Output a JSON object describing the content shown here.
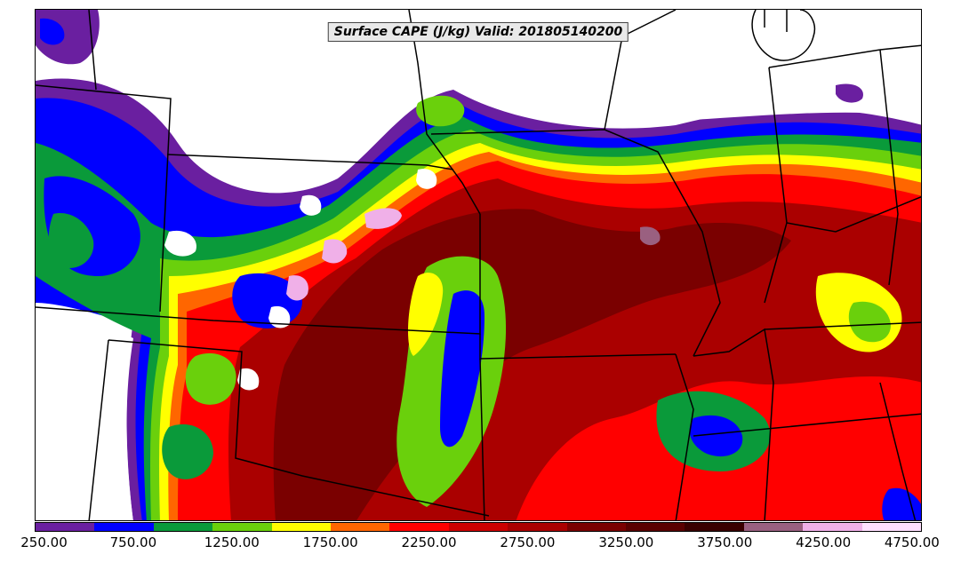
{
  "title": "Surface CAPE (J/kg) Valid: 201805140200",
  "colorbar": {
    "colors": [
      "#6a1fa0",
      "#0000ff",
      "#0a9a3a",
      "#6ad00c",
      "#ffff00",
      "#ff6600",
      "#ff0000",
      "#cc0000",
      "#aa0000",
      "#7a0000",
      "#5a0000",
      "#3a0000",
      "#9a6080",
      "#f0b0e8",
      "#ffe0ff"
    ],
    "tick_labels": [
      "250.00",
      "750.00",
      "1250.00",
      "1750.00",
      "2250.00",
      "2750.00",
      "3250.00",
      "3750.00",
      "4250.00",
      "4750.00"
    ],
    "min": 250,
    "max": 4750
  },
  "icons": {
    "map": "cape-field-map",
    "boundaries": "state-boundary-lines"
  }
}
